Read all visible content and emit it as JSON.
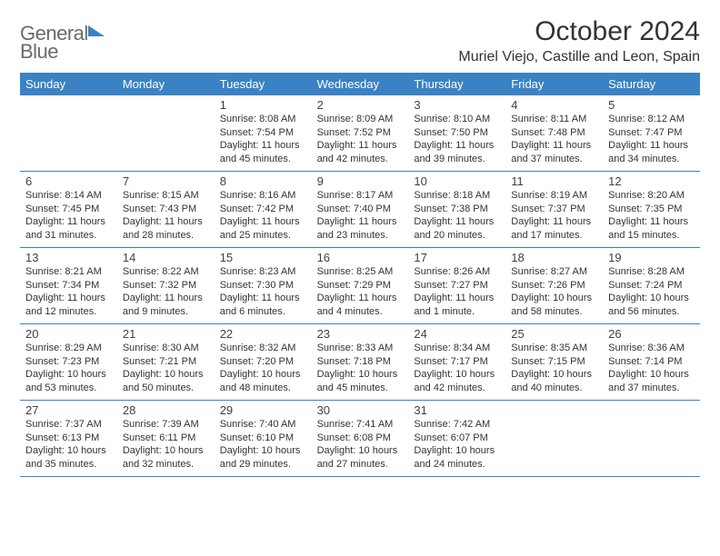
{
  "logo": {
    "line1": "General",
    "line2": "Blue"
  },
  "title": "October 2024",
  "location": "Muriel Viejo, Castille and Leon, Spain",
  "colors": {
    "header_bg": "#3a82c4",
    "header_text": "#ffffff",
    "border": "#3a82c4",
    "body_text": "#333333",
    "logo_gray": "#6b6b6b",
    "logo_blue": "#3a82c4",
    "background": "#ffffff"
  },
  "typography": {
    "title_fontsize": 30,
    "location_fontsize": 16,
    "dayheader_fontsize": 13,
    "daynum_fontsize": 13,
    "cell_fontsize": 11
  },
  "day_names": [
    "Sunday",
    "Monday",
    "Tuesday",
    "Wednesday",
    "Thursday",
    "Friday",
    "Saturday"
  ],
  "weeks": [
    [
      null,
      null,
      {
        "n": "1",
        "sr": "Sunrise: 8:08 AM",
        "ss": "Sunset: 7:54 PM",
        "dl": "Daylight: 11 hours and 45 minutes."
      },
      {
        "n": "2",
        "sr": "Sunrise: 8:09 AM",
        "ss": "Sunset: 7:52 PM",
        "dl": "Daylight: 11 hours and 42 minutes."
      },
      {
        "n": "3",
        "sr": "Sunrise: 8:10 AM",
        "ss": "Sunset: 7:50 PM",
        "dl": "Daylight: 11 hours and 39 minutes."
      },
      {
        "n": "4",
        "sr": "Sunrise: 8:11 AM",
        "ss": "Sunset: 7:48 PM",
        "dl": "Daylight: 11 hours and 37 minutes."
      },
      {
        "n": "5",
        "sr": "Sunrise: 8:12 AM",
        "ss": "Sunset: 7:47 PM",
        "dl": "Daylight: 11 hours and 34 minutes."
      }
    ],
    [
      {
        "n": "6",
        "sr": "Sunrise: 8:14 AM",
        "ss": "Sunset: 7:45 PM",
        "dl": "Daylight: 11 hours and 31 minutes."
      },
      {
        "n": "7",
        "sr": "Sunrise: 8:15 AM",
        "ss": "Sunset: 7:43 PM",
        "dl": "Daylight: 11 hours and 28 minutes."
      },
      {
        "n": "8",
        "sr": "Sunrise: 8:16 AM",
        "ss": "Sunset: 7:42 PM",
        "dl": "Daylight: 11 hours and 25 minutes."
      },
      {
        "n": "9",
        "sr": "Sunrise: 8:17 AM",
        "ss": "Sunset: 7:40 PM",
        "dl": "Daylight: 11 hours and 23 minutes."
      },
      {
        "n": "10",
        "sr": "Sunrise: 8:18 AM",
        "ss": "Sunset: 7:38 PM",
        "dl": "Daylight: 11 hours and 20 minutes."
      },
      {
        "n": "11",
        "sr": "Sunrise: 8:19 AM",
        "ss": "Sunset: 7:37 PM",
        "dl": "Daylight: 11 hours and 17 minutes."
      },
      {
        "n": "12",
        "sr": "Sunrise: 8:20 AM",
        "ss": "Sunset: 7:35 PM",
        "dl": "Daylight: 11 hours and 15 minutes."
      }
    ],
    [
      {
        "n": "13",
        "sr": "Sunrise: 8:21 AM",
        "ss": "Sunset: 7:34 PM",
        "dl": "Daylight: 11 hours and 12 minutes."
      },
      {
        "n": "14",
        "sr": "Sunrise: 8:22 AM",
        "ss": "Sunset: 7:32 PM",
        "dl": "Daylight: 11 hours and 9 minutes."
      },
      {
        "n": "15",
        "sr": "Sunrise: 8:23 AM",
        "ss": "Sunset: 7:30 PM",
        "dl": "Daylight: 11 hours and 6 minutes."
      },
      {
        "n": "16",
        "sr": "Sunrise: 8:25 AM",
        "ss": "Sunset: 7:29 PM",
        "dl": "Daylight: 11 hours and 4 minutes."
      },
      {
        "n": "17",
        "sr": "Sunrise: 8:26 AM",
        "ss": "Sunset: 7:27 PM",
        "dl": "Daylight: 11 hours and 1 minute."
      },
      {
        "n": "18",
        "sr": "Sunrise: 8:27 AM",
        "ss": "Sunset: 7:26 PM",
        "dl": "Daylight: 10 hours and 58 minutes."
      },
      {
        "n": "19",
        "sr": "Sunrise: 8:28 AM",
        "ss": "Sunset: 7:24 PM",
        "dl": "Daylight: 10 hours and 56 minutes."
      }
    ],
    [
      {
        "n": "20",
        "sr": "Sunrise: 8:29 AM",
        "ss": "Sunset: 7:23 PM",
        "dl": "Daylight: 10 hours and 53 minutes."
      },
      {
        "n": "21",
        "sr": "Sunrise: 8:30 AM",
        "ss": "Sunset: 7:21 PM",
        "dl": "Daylight: 10 hours and 50 minutes."
      },
      {
        "n": "22",
        "sr": "Sunrise: 8:32 AM",
        "ss": "Sunset: 7:20 PM",
        "dl": "Daylight: 10 hours and 48 minutes."
      },
      {
        "n": "23",
        "sr": "Sunrise: 8:33 AM",
        "ss": "Sunset: 7:18 PM",
        "dl": "Daylight: 10 hours and 45 minutes."
      },
      {
        "n": "24",
        "sr": "Sunrise: 8:34 AM",
        "ss": "Sunset: 7:17 PM",
        "dl": "Daylight: 10 hours and 42 minutes."
      },
      {
        "n": "25",
        "sr": "Sunrise: 8:35 AM",
        "ss": "Sunset: 7:15 PM",
        "dl": "Daylight: 10 hours and 40 minutes."
      },
      {
        "n": "26",
        "sr": "Sunrise: 8:36 AM",
        "ss": "Sunset: 7:14 PM",
        "dl": "Daylight: 10 hours and 37 minutes."
      }
    ],
    [
      {
        "n": "27",
        "sr": "Sunrise: 7:37 AM",
        "ss": "Sunset: 6:13 PM",
        "dl": "Daylight: 10 hours and 35 minutes."
      },
      {
        "n": "28",
        "sr": "Sunrise: 7:39 AM",
        "ss": "Sunset: 6:11 PM",
        "dl": "Daylight: 10 hours and 32 minutes."
      },
      {
        "n": "29",
        "sr": "Sunrise: 7:40 AM",
        "ss": "Sunset: 6:10 PM",
        "dl": "Daylight: 10 hours and 29 minutes."
      },
      {
        "n": "30",
        "sr": "Sunrise: 7:41 AM",
        "ss": "Sunset: 6:08 PM",
        "dl": "Daylight: 10 hours and 27 minutes."
      },
      {
        "n": "31",
        "sr": "Sunrise: 7:42 AM",
        "ss": "Sunset: 6:07 PM",
        "dl": "Daylight: 10 hours and 24 minutes."
      },
      null,
      null
    ]
  ]
}
